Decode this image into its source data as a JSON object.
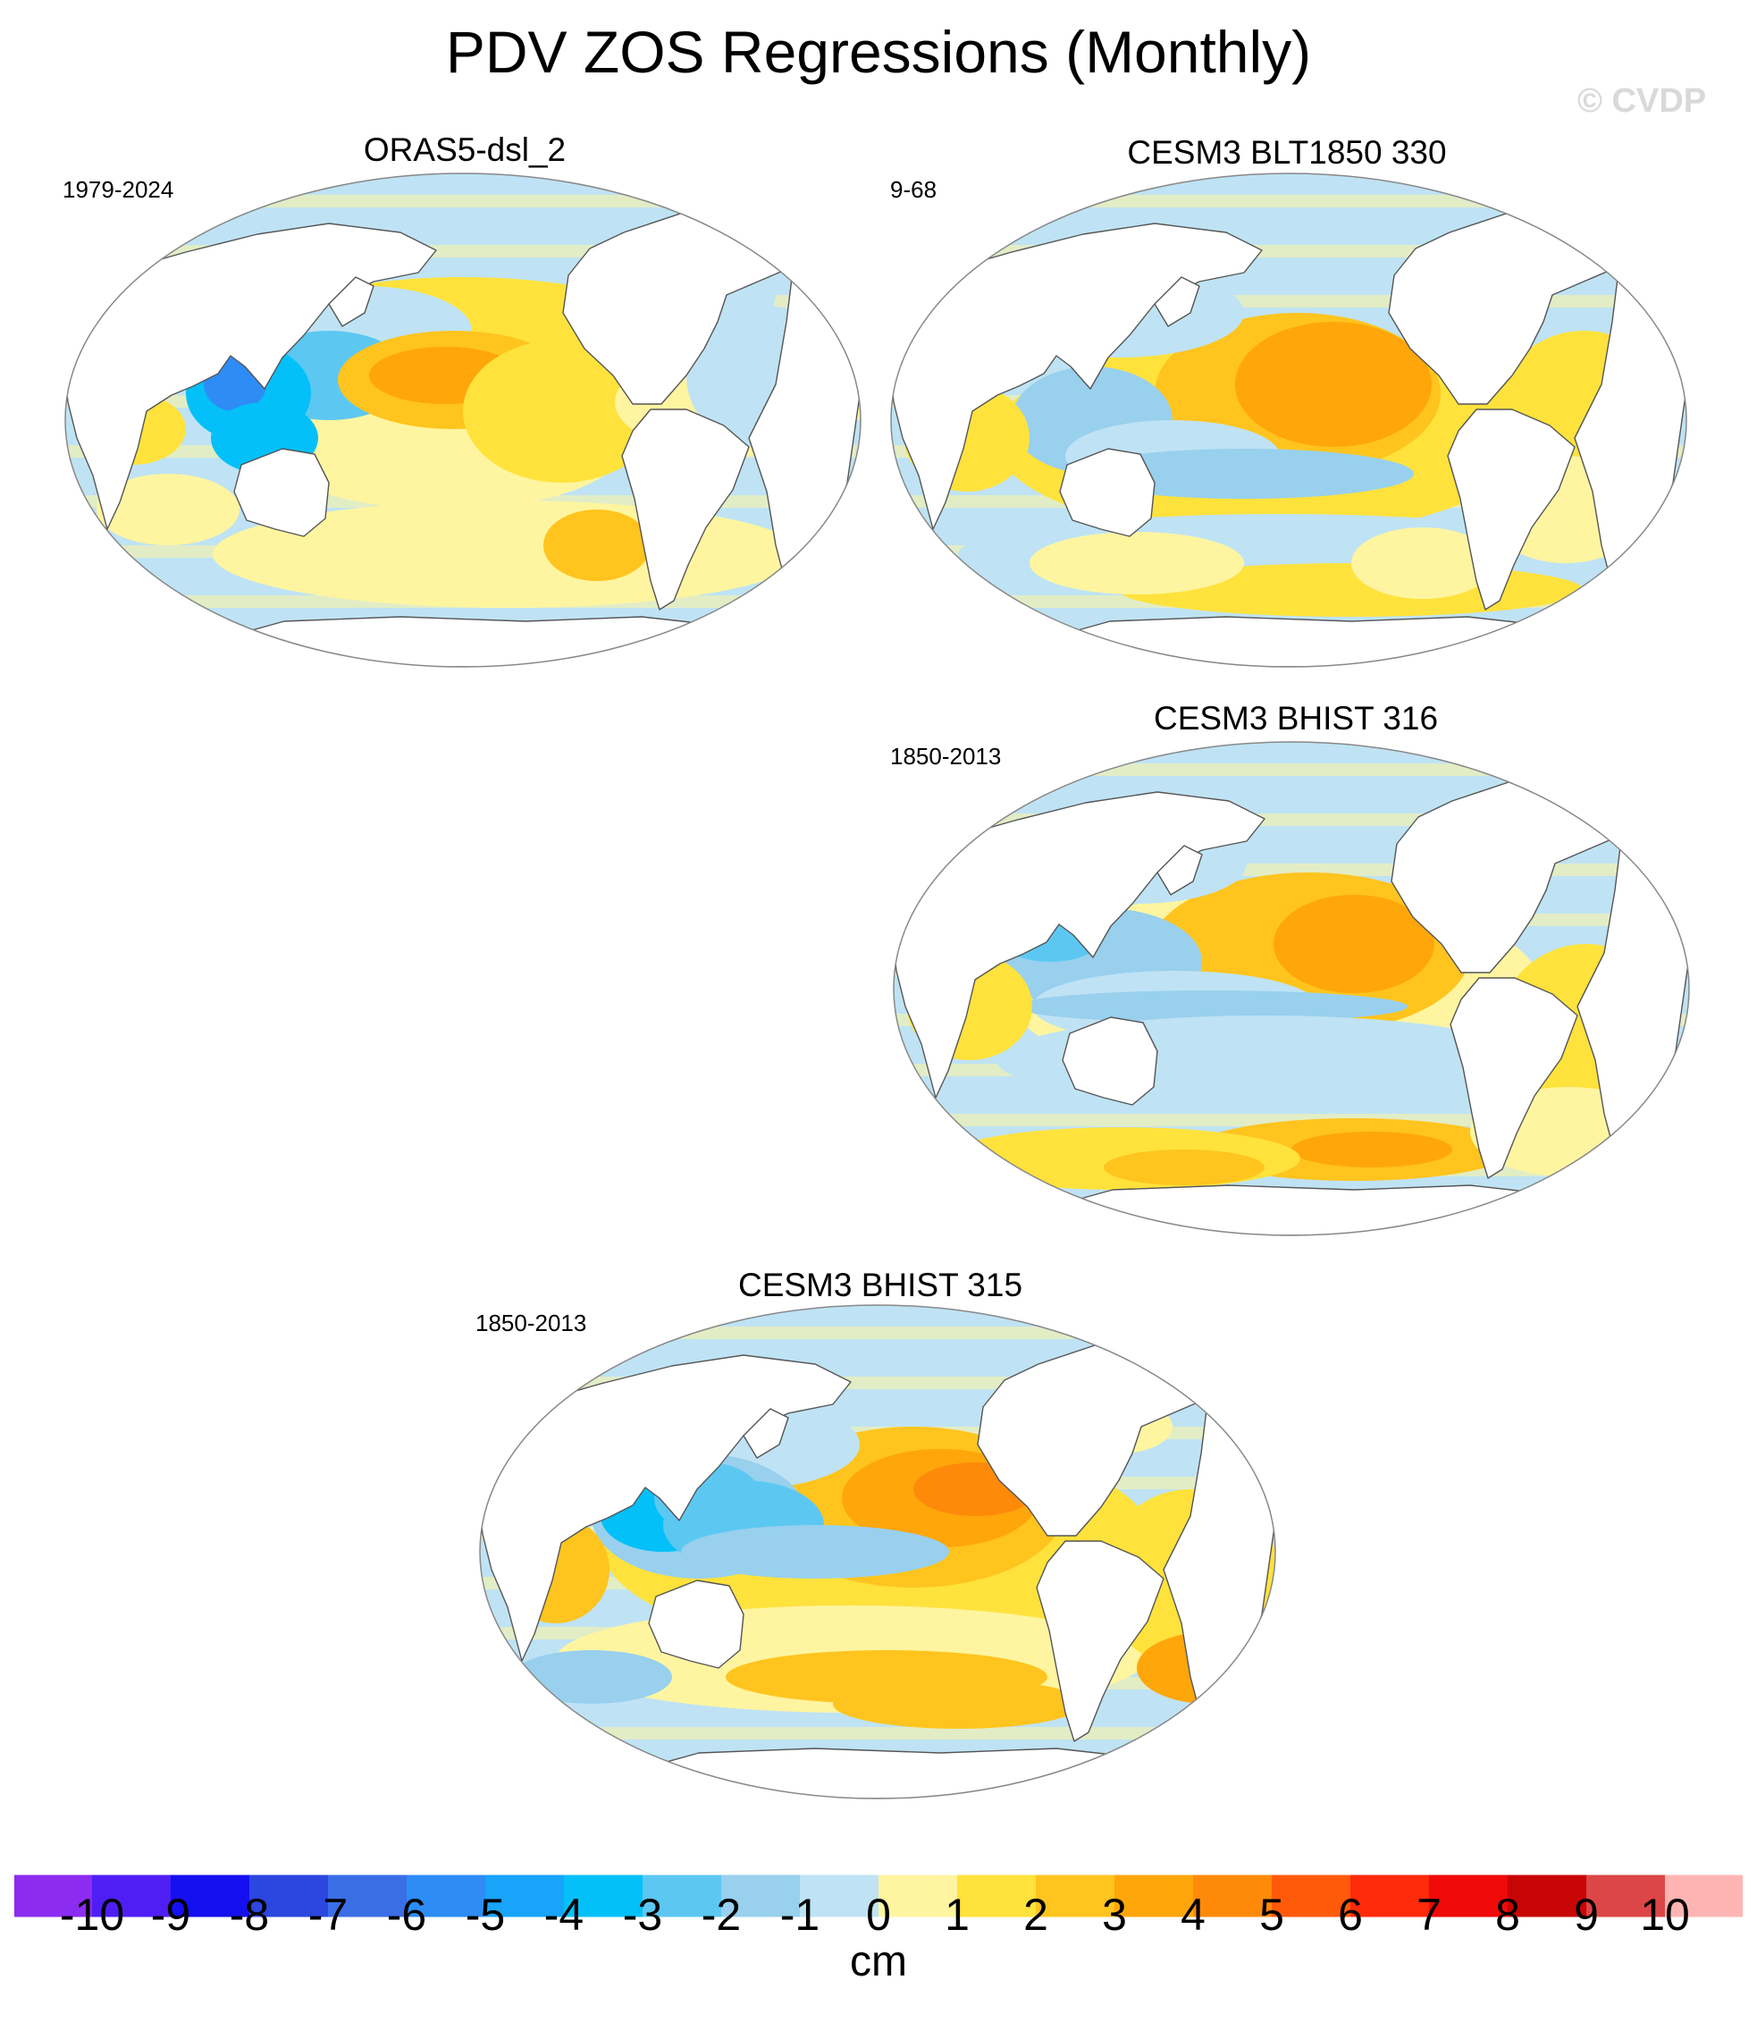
{
  "title": "PDV ZOS Regressions (Monthly)",
  "watermark": "© CVDP",
  "panels": [
    {
      "name": "ORAS5-dsl_2",
      "years": "1979-2024",
      "variant": "obs"
    },
    {
      "name": "CESM3 BLT1850 330",
      "years": "9-68",
      "variant": "blt"
    },
    {
      "name": "CESM3 BHIST 316",
      "years": "1850-2013",
      "variant": "h316"
    },
    {
      "name": "CESM3 BHIST 315",
      "years": "1850-2013",
      "variant": "h315"
    }
  ],
  "colorbar": {
    "units": "cm",
    "labels": [
      "-10",
      "-9",
      "-8",
      "-7",
      "-6",
      "-5",
      "-4",
      "-3",
      "-2",
      "-1",
      "0",
      "1",
      "2",
      "3",
      "4",
      "5",
      "6",
      "7",
      "8",
      "9",
      "10"
    ],
    "colors": [
      "#8c2cf0",
      "#4f1ef5",
      "#1410f0",
      "#2c46e0",
      "#3a6ee6",
      "#2d8cf5",
      "#18a4f8",
      "#04c0f8",
      "#5cc8f2",
      "#98d0ee",
      "#bfe3f4",
      "#fff5a0",
      "#ffe23c",
      "#ffc41e",
      "#ffa60a",
      "#ff8a0a",
      "#ff5a0a",
      "#ff2a0a",
      "#f00a0a",
      "#c80505",
      "#dc4646",
      "#ffb4b4"
    ]
  },
  "palette": {
    "land": "#ffffff",
    "coast": "#555555",
    "border": "#888888",
    "neutral_neg": "#bfe3f4",
    "neutral_pos": "#fff5a0"
  }
}
